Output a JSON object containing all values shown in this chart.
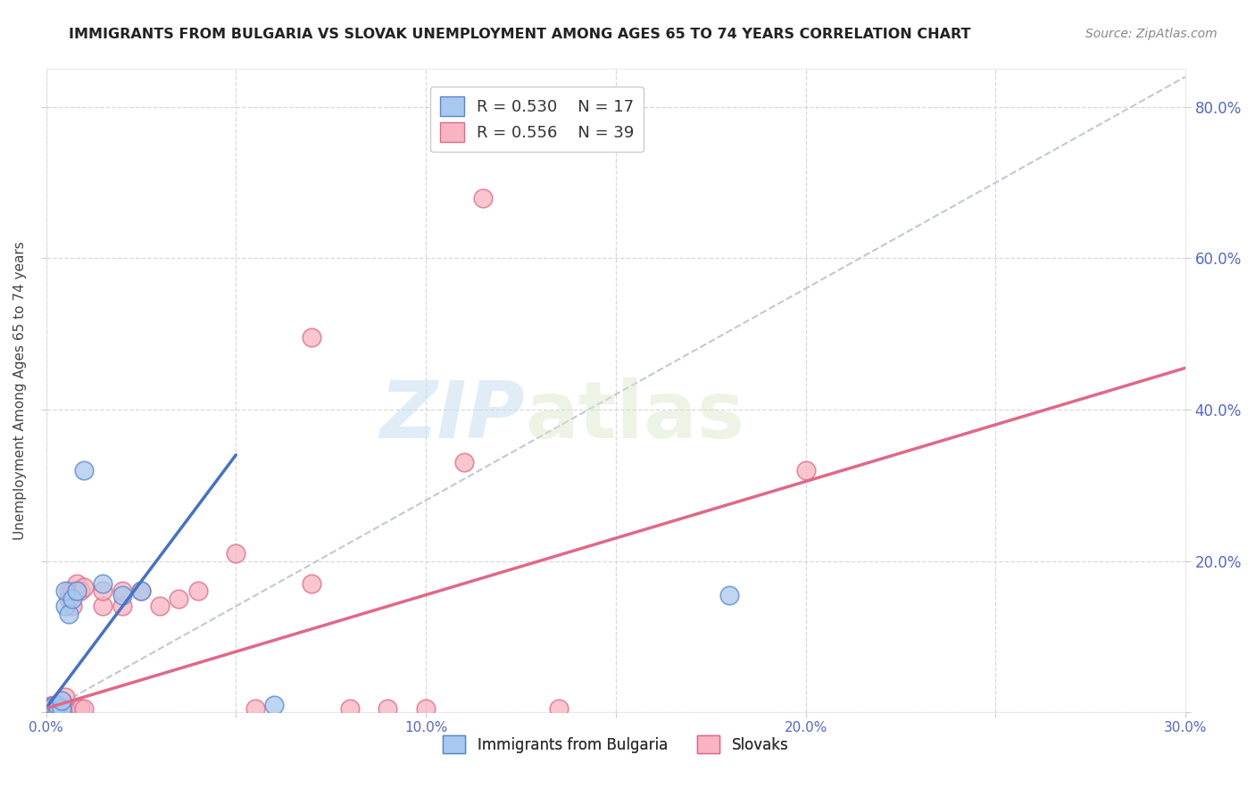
{
  "title": "IMMIGRANTS FROM BULGARIA VS SLOVAK UNEMPLOYMENT AMONG AGES 65 TO 74 YEARS CORRELATION CHART",
  "source": "Source: ZipAtlas.com",
  "ylabel": "Unemployment Among Ages 65 to 74 years",
  "xlim": [
    0.0,
    0.3
  ],
  "ylim": [
    0.0,
    0.85
  ],
  "xticks": [
    0.0,
    0.05,
    0.1,
    0.15,
    0.2,
    0.25,
    0.3
  ],
  "yticks": [
    0.0,
    0.2,
    0.4,
    0.6,
    0.8
  ],
  "xtick_labels": [
    "0.0%",
    "",
    "10.0%",
    "",
    "20.0%",
    "",
    "30.0%"
  ],
  "ytick_labels_right": [
    "",
    "20.0%",
    "40.0%",
    "60.0%",
    "80.0%"
  ],
  "legend_entries": [
    {
      "label_r": "R = 0.530",
      "label_n": "N = 17",
      "color": "#a8c8f0"
    },
    {
      "label_r": "R = 0.556",
      "label_n": "N = 39",
      "color": "#f8b4c0"
    }
  ],
  "legend_bottom": [
    {
      "label": "Immigrants from Bulgaria",
      "color": "#a8c8f0"
    },
    {
      "label": "Slovaks",
      "color": "#f8b4c0"
    }
  ],
  "watermark_zip": "ZIP",
  "watermark_atlas": "atlas",
  "bg_color": "#ffffff",
  "grid_color": "#d8d8d8",
  "blue_scatter_color": "#a8c8f0",
  "blue_edge_color": "#5588cc",
  "pink_scatter_color": "#f8b4c0",
  "pink_edge_color": "#e06888",
  "blue_line_color": "#4472c4",
  "pink_line_color": "#e06888",
  "diag_line_color": "#c0c8d8",
  "tick_label_color": "#5566cc",
  "scatter_blue": [
    [
      0.001,
      0.005
    ],
    [
      0.002,
      0.008
    ],
    [
      0.003,
      0.005
    ],
    [
      0.003,
      0.01
    ],
    [
      0.004,
      0.005
    ],
    [
      0.004,
      0.015
    ],
    [
      0.005,
      0.14
    ],
    [
      0.005,
      0.16
    ],
    [
      0.006,
      0.13
    ],
    [
      0.007,
      0.15
    ],
    [
      0.008,
      0.16
    ],
    [
      0.01,
      0.32
    ],
    [
      0.015,
      0.17
    ],
    [
      0.02,
      0.155
    ],
    [
      0.025,
      0.16
    ],
    [
      0.06,
      0.01
    ],
    [
      0.18,
      0.155
    ]
  ],
  "scatter_pink": [
    [
      0.001,
      0.005
    ],
    [
      0.001,
      0.008
    ],
    [
      0.002,
      0.005
    ],
    [
      0.002,
      0.01
    ],
    [
      0.003,
      0.005
    ],
    [
      0.003,
      0.008
    ],
    [
      0.004,
      0.005
    ],
    [
      0.004,
      0.015
    ],
    [
      0.005,
      0.005
    ],
    [
      0.005,
      0.02
    ],
    [
      0.006,
      0.15
    ],
    [
      0.006,
      0.16
    ],
    [
      0.007,
      0.14
    ],
    [
      0.007,
      0.16
    ],
    [
      0.008,
      0.16
    ],
    [
      0.008,
      0.17
    ],
    [
      0.009,
      0.005
    ],
    [
      0.009,
      0.16
    ],
    [
      0.01,
      0.005
    ],
    [
      0.01,
      0.165
    ],
    [
      0.015,
      0.14
    ],
    [
      0.015,
      0.16
    ],
    [
      0.02,
      0.14
    ],
    [
      0.02,
      0.16
    ],
    [
      0.025,
      0.16
    ],
    [
      0.03,
      0.14
    ],
    [
      0.035,
      0.15
    ],
    [
      0.04,
      0.16
    ],
    [
      0.05,
      0.21
    ],
    [
      0.055,
      0.005
    ],
    [
      0.07,
      0.17
    ],
    [
      0.08,
      0.005
    ],
    [
      0.09,
      0.005
    ],
    [
      0.1,
      0.005
    ],
    [
      0.07,
      0.495
    ],
    [
      0.11,
      0.33
    ],
    [
      0.135,
      0.005
    ],
    [
      0.2,
      0.32
    ],
    [
      0.115,
      0.68
    ]
  ],
  "blue_line": {
    "x0": 0.0,
    "x1": 0.05,
    "y0": 0.005,
    "y1": 0.34
  },
  "pink_line": {
    "x0": 0.0,
    "x1": 0.3,
    "y0": 0.005,
    "y1": 0.455
  },
  "diag_line": {
    "x0": 0.0,
    "x1": 0.3,
    "y0": 0.0,
    "y1": 0.84
  }
}
